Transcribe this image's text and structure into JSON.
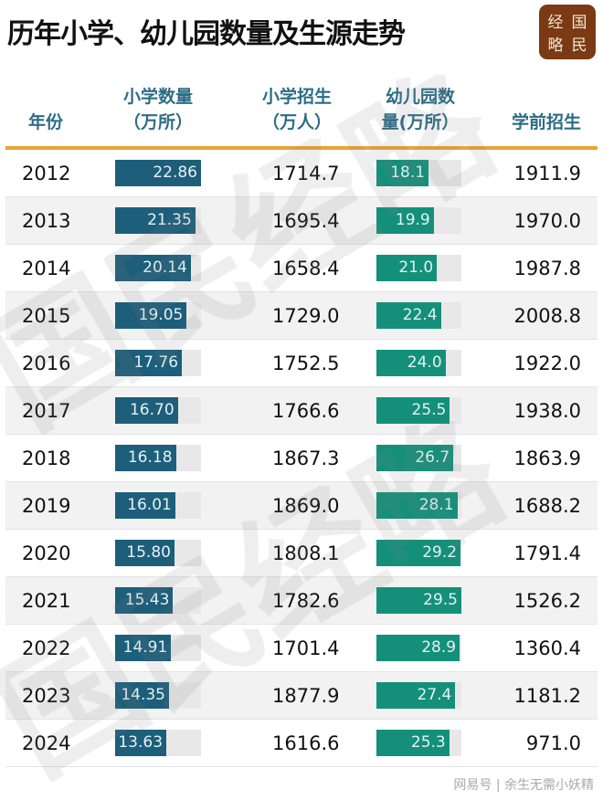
{
  "title": "历年小学、幼儿园数量及生源走势",
  "logo": [
    "经",
    "国",
    "略",
    "民"
  ],
  "watermark": "国民经略",
  "source_watermark": "网易号 | 余生无需小妖精",
  "colors": {
    "primary_bar": "#1d5f7a",
    "kindergarten_bar": "#14907a",
    "header_text": "#2c6d86",
    "rule": "#e8a33a",
    "logo_bg": "#7b3a14"
  },
  "chart_data": {
    "type": "table",
    "columns": [
      "年份",
      "小学数量\n（万所）",
      "小学招生\n（万人）",
      "幼儿园数\n量(万所）",
      "学前招生"
    ],
    "rows": [
      {
        "year": "2012",
        "schools": 22.86,
        "primary_enroll": "1714.7",
        "kindergartens": 18.1,
        "preschool_enroll": "1911.9"
      },
      {
        "year": "2013",
        "schools": 21.35,
        "primary_enroll": "1695.4",
        "kindergartens": 19.9,
        "preschool_enroll": "1970.0"
      },
      {
        "year": "2014",
        "schools": 20.14,
        "primary_enroll": "1658.4",
        "kindergartens": 21.0,
        "preschool_enroll": "1987.8"
      },
      {
        "year": "2015",
        "schools": 19.05,
        "primary_enroll": "1729.0",
        "kindergartens": 22.4,
        "preschool_enroll": "2008.8"
      },
      {
        "year": "2016",
        "schools": 17.76,
        "primary_enroll": "1752.5",
        "kindergartens": 24.0,
        "preschool_enroll": "1922.0"
      },
      {
        "year": "2017",
        "schools": 16.7,
        "primary_enroll": "1766.6",
        "kindergartens": 25.5,
        "preschool_enroll": "1938.0"
      },
      {
        "year": "2018",
        "schools": 16.18,
        "primary_enroll": "1867.3",
        "kindergartens": 26.7,
        "preschool_enroll": "1863.9"
      },
      {
        "year": "2019",
        "schools": 16.01,
        "primary_enroll": "1869.0",
        "kindergartens": 28.1,
        "preschool_enroll": "1688.2"
      },
      {
        "year": "2020",
        "schools": 15.8,
        "primary_enroll": "1808.1",
        "kindergartens": 29.2,
        "preschool_enroll": "1791.4"
      },
      {
        "year": "2021",
        "schools": 15.43,
        "primary_enroll": "1782.6",
        "kindergartens": 29.5,
        "preschool_enroll": "1526.2"
      },
      {
        "year": "2022",
        "schools": 14.91,
        "primary_enroll": "1701.4",
        "kindergartens": 28.9,
        "preschool_enroll": "1360.4"
      },
      {
        "year": "2023",
        "schools": 14.35,
        "primary_enroll": "1877.9",
        "kindergartens": 27.4,
        "preschool_enroll": "1181.2"
      },
      {
        "year": "2024",
        "schools": 13.63,
        "primary_enroll": "1616.6",
        "kindergartens": 25.3,
        "preschool_enroll": "971.0"
      }
    ]
  }
}
